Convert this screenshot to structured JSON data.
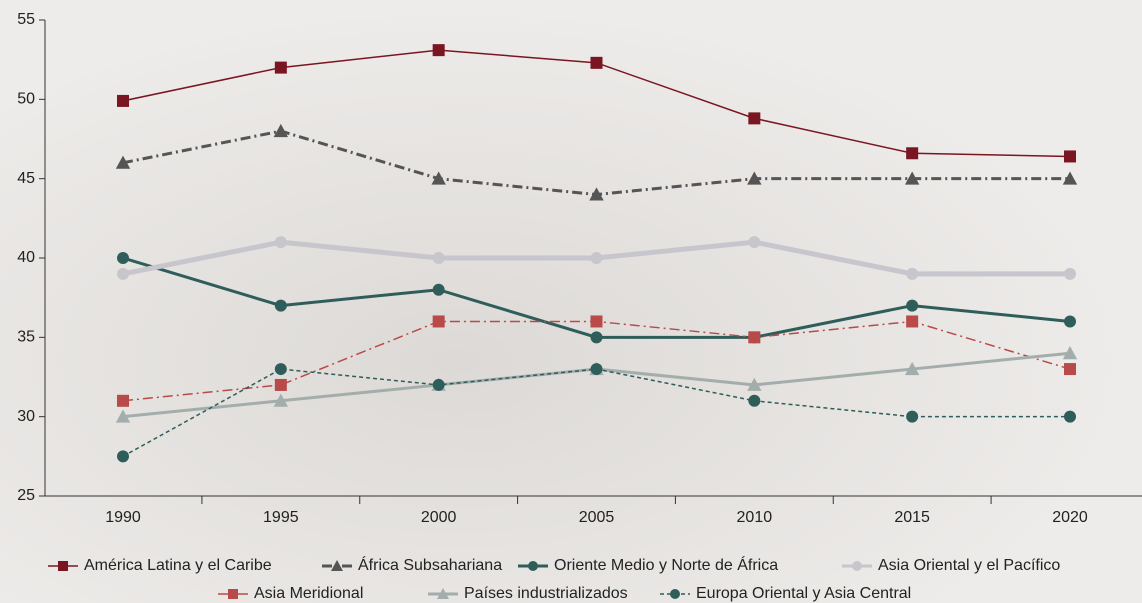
{
  "chart_data": {
    "type": "line",
    "categories": [
      "1990",
      "1995",
      "2000",
      "2005",
      "2010",
      "2015",
      "2020"
    ],
    "ylim": [
      25,
      55
    ],
    "yticks": [
      25,
      30,
      35,
      40,
      45,
      50,
      55
    ],
    "series": [
      {
        "name": "América Latina y el Caribe",
        "color": "#7a1522",
        "marker": "square",
        "dash": "solid",
        "width": 1.5,
        "values": [
          49.9,
          52,
          53.1,
          52.3,
          48.8,
          46.6,
          46.4
        ]
      },
      {
        "name": "África Subsahariana",
        "color": "#555555",
        "marker": "triangle",
        "dash": "dashdot",
        "width": 3,
        "values": [
          46,
          48,
          45,
          44,
          45,
          45,
          45
        ]
      },
      {
        "name": "Oriente Medio y Norte de África",
        "color": "#2f5d5a",
        "marker": "circle",
        "dash": "solid",
        "width": 3,
        "values": [
          40,
          37,
          38,
          35,
          35,
          37,
          36
        ]
      },
      {
        "name": "Asia Oriental y el Pacífico",
        "color": "#c6c6cc",
        "marker": "circle",
        "dash": "solid",
        "width": 5,
        "values": [
          39,
          41,
          40,
          40,
          41,
          39,
          39
        ]
      },
      {
        "name": "Asia Meridional",
        "color": "#b84a4a",
        "marker": "square",
        "dash": "dashdot",
        "width": 1.5,
        "values": [
          31,
          32,
          36,
          36,
          35,
          36,
          33
        ]
      },
      {
        "name": "Países industrializados",
        "color": "#a3aeac",
        "marker": "triangle",
        "dash": "solid",
        "width": 3,
        "values": [
          30,
          31,
          32,
          33,
          32,
          33,
          34
        ]
      },
      {
        "name": "Europa Oriental y Asia Central",
        "color": "#2f5d5a",
        "marker": "circle",
        "dash": "dotted",
        "width": 1.5,
        "values": [
          27.5,
          33,
          32,
          33,
          31,
          30,
          30
        ]
      }
    ]
  }
}
